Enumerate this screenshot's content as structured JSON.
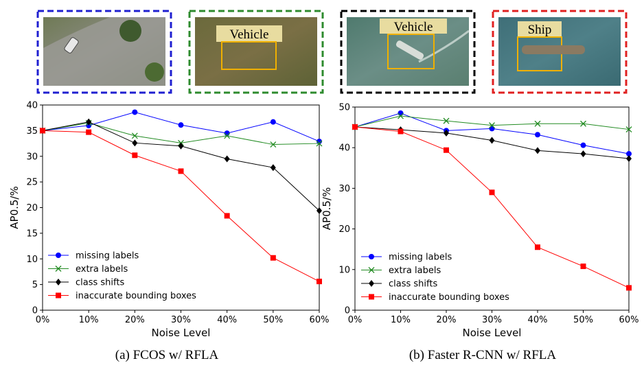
{
  "thumbnails": [
    {
      "frame_color": "#1f1fd0",
      "label": ""
    },
    {
      "frame_color": "#2e8b2e",
      "label": "Vehicle"
    },
    {
      "frame_color": "#000000",
      "label": "Vehicle"
    },
    {
      "frame_color": "#e02020",
      "label": "Ship"
    }
  ],
  "colors": {
    "missing": "#0000ff",
    "extra": "#228b22",
    "shift": "#000000",
    "inaccurate": "#ff0000",
    "label_box": "#e8dca0",
    "target_box": "#f0b000"
  },
  "chart_data": [
    {
      "type": "line",
      "caption": "(a) FCOS w/ RFLA",
      "xlabel": "Noise Level",
      "ylabel": "AP0.5/%",
      "categories": [
        "0%",
        "10%",
        "20%",
        "30%",
        "40%",
        "50%",
        "60%"
      ],
      "ylim": [
        0,
        40
      ],
      "yticks": [
        0,
        5,
        10,
        15,
        20,
        25,
        30,
        35,
        40
      ],
      "legend_position": "lower-left",
      "grid": false,
      "series": [
        {
          "name": "missing labels",
          "marker": "circle",
          "values": [
            35.0,
            36.0,
            38.6,
            36.1,
            34.5,
            36.7,
            32.9
          ]
        },
        {
          "name": "extra labels",
          "marker": "x",
          "values": [
            35.0,
            36.5,
            34.0,
            32.6,
            34.0,
            32.3,
            32.5
          ]
        },
        {
          "name": "class shifts",
          "marker": "diamond",
          "values": [
            35.0,
            36.7,
            32.6,
            32.0,
            29.5,
            27.8,
            19.4
          ]
        },
        {
          "name": "inaccurate bounding boxes",
          "marker": "square",
          "values": [
            35.0,
            34.7,
            30.2,
            27.1,
            18.4,
            10.2,
            5.6
          ]
        }
      ]
    },
    {
      "type": "line",
      "caption": "(b) Faster R-CNN w/ RFLA",
      "xlabel": "Noise Level",
      "ylabel": "AP0.5/%",
      "categories": [
        "0%",
        "10%",
        "20%",
        "30%",
        "40%",
        "50%",
        "60%"
      ],
      "ylim": [
        0,
        50
      ],
      "yticks": [
        0,
        10,
        20,
        30,
        40,
        50
      ],
      "legend_position": "lower-left",
      "grid": false,
      "series": [
        {
          "name": "missing labels",
          "marker": "circle",
          "values": [
            45.1,
            48.5,
            44.2,
            44.7,
            43.2,
            40.6,
            38.5
          ]
        },
        {
          "name": "extra labels",
          "marker": "x",
          "values": [
            45.1,
            47.8,
            46.6,
            45.5,
            45.9,
            45.9,
            44.5
          ]
        },
        {
          "name": "class shifts",
          "marker": "diamond",
          "values": [
            45.1,
            44.4,
            43.6,
            41.8,
            39.3,
            38.5,
            37.3
          ]
        },
        {
          "name": "inaccurate bounding boxes",
          "marker": "square",
          "values": [
            45.1,
            44.0,
            39.4,
            29.0,
            15.5,
            10.8,
            5.5
          ]
        }
      ]
    }
  ]
}
